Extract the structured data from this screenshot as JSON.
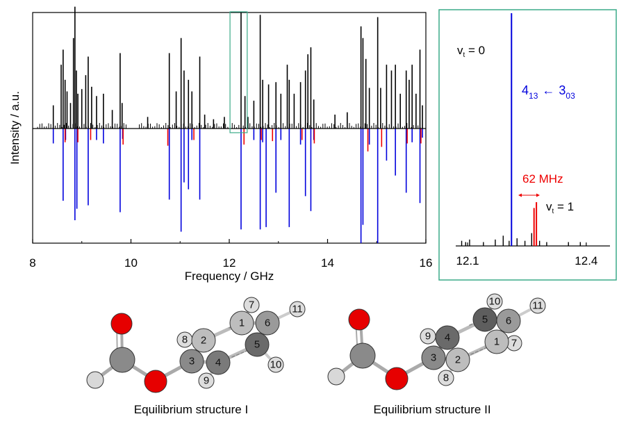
{
  "chart_data": [
    {
      "type": "stick-spectrum",
      "xlabel": "Frequency / GHz",
      "ylabel": "Intensity / a.u.",
      "xlim": [
        8,
        16
      ],
      "xticks": [
        "8",
        "10",
        "12",
        "14",
        "16"
      ],
      "observed_color": "#000000",
      "vt0_color": "#0000dd",
      "vt1_color": "#ee0000",
      "observed": [
        [
          8.42,
          0.2
        ],
        [
          8.58,
          0.55
        ],
        [
          8.62,
          0.68
        ],
        [
          8.66,
          0.42
        ],
        [
          8.7,
          0.32
        ],
        [
          8.77,
          0.22
        ],
        [
          8.83,
          0.78
        ],
        [
          8.86,
          1.05
        ],
        [
          8.89,
          0.5
        ],
        [
          8.92,
          0.3
        ],
        [
          9.0,
          0.34
        ],
        [
          9.08,
          0.46
        ],
        [
          9.13,
          0.62
        ],
        [
          9.2,
          0.36
        ],
        [
          9.3,
          0.28
        ],
        [
          9.44,
          0.3
        ],
        [
          9.62,
          0.16
        ],
        [
          9.78,
          0.65
        ],
        [
          9.82,
          0.22
        ],
        [
          10.34,
          0.1
        ],
        [
          10.78,
          0.65
        ],
        [
          10.92,
          0.32
        ],
        [
          11.02,
          0.78
        ],
        [
          11.08,
          0.5
        ],
        [
          11.17,
          0.42
        ],
        [
          11.24,
          0.32
        ],
        [
          11.4,
          0.62
        ],
        [
          11.5,
          0.12
        ],
        [
          11.68,
          0.08
        ],
        [
          11.9,
          0.1
        ],
        [
          12.24,
          1.0
        ],
        [
          12.32,
          0.28
        ],
        [
          12.38,
          0.1
        ],
        [
          12.5,
          0.24
        ],
        [
          12.63,
          0.98
        ],
        [
          12.68,
          0.42
        ],
        [
          12.8,
          0.38
        ],
        [
          12.95,
          0.4
        ],
        [
          13.05,
          0.3
        ],
        [
          13.18,
          0.55
        ],
        [
          13.22,
          0.42
        ],
        [
          13.32,
          0.3
        ],
        [
          13.45,
          0.4
        ],
        [
          13.55,
          0.5
        ],
        [
          13.6,
          0.64
        ],
        [
          13.66,
          0.7
        ],
        [
          13.72,
          0.25
        ],
        [
          14.15,
          0.12
        ],
        [
          14.4,
          0.14
        ],
        [
          14.68,
          0.88
        ],
        [
          14.72,
          0.78
        ],
        [
          14.78,
          0.6
        ],
        [
          14.85,
          0.35
        ],
        [
          15.02,
          0.96
        ],
        [
          15.08,
          0.35
        ],
        [
          15.2,
          0.55
        ],
        [
          15.3,
          0.5
        ],
        [
          15.38,
          0.55
        ],
        [
          15.48,
          0.3
        ],
        [
          15.6,
          0.5
        ],
        [
          15.66,
          0.42
        ],
        [
          15.72,
          0.55
        ],
        [
          15.8,
          0.3
        ],
        [
          15.88,
          0.68
        ],
        [
          15.93,
          0.2
        ]
      ],
      "simulated_vt0": [
        [
          8.42,
          0.13
        ],
        [
          8.62,
          0.63
        ],
        [
          8.67,
          0.1
        ],
        [
          8.86,
          0.8
        ],
        [
          8.9,
          0.7
        ],
        [
          9.13,
          0.67
        ],
        [
          9.3,
          0.1
        ],
        [
          9.44,
          0.13
        ],
        [
          9.78,
          0.73
        ],
        [
          9.83,
          0.09
        ],
        [
          10.78,
          0.62
        ],
        [
          11.02,
          0.9
        ],
        [
          11.08,
          0.47
        ],
        [
          11.17,
          0.53
        ],
        [
          11.24,
          0.1
        ],
        [
          11.4,
          0.62
        ],
        [
          12.24,
          0.88
        ],
        [
          12.5,
          0.1
        ],
        [
          12.63,
          0.88
        ],
        [
          12.68,
          0.12
        ],
        [
          12.75,
          0.86
        ],
        [
          12.95,
          0.56
        ],
        [
          13.05,
          0.1
        ],
        [
          13.22,
          0.86
        ],
        [
          13.45,
          0.14
        ],
        [
          13.55,
          0.59
        ],
        [
          13.66,
          0.72
        ],
        [
          13.72,
          0.1
        ],
        [
          14.68,
          1.0
        ],
        [
          14.72,
          0.84
        ],
        [
          14.85,
          0.14
        ],
        [
          15.02,
          1.0
        ],
        [
          15.2,
          0.28
        ],
        [
          15.38,
          0.41
        ],
        [
          15.6,
          0.56
        ],
        [
          15.72,
          0.12
        ],
        [
          15.88,
          0.65
        ],
        [
          15.93,
          0.08
        ]
      ],
      "simulated_vt1": [
        [
          8.66,
          0.12
        ],
        [
          8.92,
          0.12
        ],
        [
          9.18,
          0.1
        ],
        [
          9.84,
          0.14
        ],
        [
          10.75,
          0.15
        ],
        [
          11.28,
          0.1
        ],
        [
          12.3,
          0.14
        ],
        [
          12.65,
          0.1
        ],
        [
          12.88,
          0.11
        ],
        [
          13.48,
          0.1
        ],
        [
          13.73,
          0.13
        ],
        [
          14.82,
          0.2
        ],
        [
          15.1,
          0.16
        ],
        [
          15.62,
          0.13
        ],
        [
          15.9,
          0.13
        ]
      ],
      "inset_region": [
        12.1,
        12.45
      ]
    },
    {
      "type": "stick-spectrum",
      "xlim": [
        12.07,
        12.46
      ],
      "xticks": [
        "12.1",
        "12.4"
      ],
      "vt0_label": "v",
      "vt0_label_sub": "t",
      "vt0_label_value": " = 0",
      "vt1_label": "v",
      "vt1_label_sub": "t",
      "vt1_label_value": " = 1",
      "transition": {
        "upper": "4",
        "upper_sub": "13",
        "arrow": "←",
        "lower": "3",
        "lower_sub": "03"
      },
      "splitting_label": "62 MHz",
      "vt0_line": [
        12.211,
        1.0
      ],
      "vt1_lines": [
        [
          12.268,
          0.26
        ],
        [
          12.274,
          0.3
        ]
      ],
      "observed_small": [
        [
          12.085,
          0.04
        ],
        [
          12.095,
          0.03
        ],
        [
          12.105,
          0.05
        ],
        [
          12.14,
          0.03
        ],
        [
          12.17,
          0.05
        ],
        [
          12.19,
          0.08
        ],
        [
          12.205,
          0.04
        ],
        [
          12.225,
          0.06
        ],
        [
          12.245,
          0.04
        ],
        [
          12.262,
          0.1
        ],
        [
          12.268,
          0.2
        ],
        [
          12.282,
          0.04
        ],
        [
          12.3,
          0.03
        ],
        [
          12.355,
          0.03
        ],
        [
          12.385,
          0.03
        ]
      ]
    }
  ],
  "structures": [
    {
      "caption": "Equilibrium structure I",
      "labels": [
        "1",
        "2",
        "3",
        "4",
        "5",
        "6",
        "7",
        "8",
        "9",
        "10",
        "11"
      ]
    },
    {
      "caption": "Equilibrium structure II",
      "labels": [
        "1",
        "2",
        "3",
        "4",
        "5",
        "6",
        "7",
        "8",
        "9",
        "10",
        "11"
      ]
    }
  ]
}
